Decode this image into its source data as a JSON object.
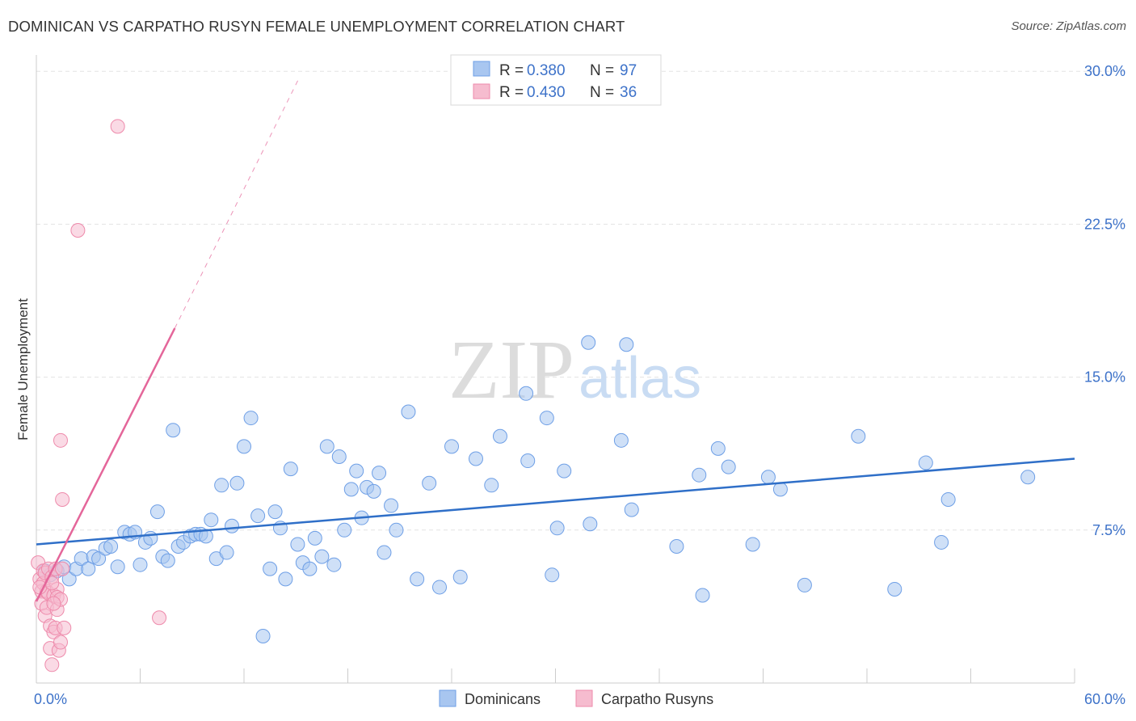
{
  "title": "DOMINICAN VS CARPATHO RUSYN FEMALE UNEMPLOYMENT CORRELATION CHART",
  "source": "Source: ZipAtlas.com",
  "watermark": {
    "zip": "ZIP",
    "atlas": "atlas"
  },
  "legend_stats": [
    {
      "r_label": "R =",
      "r_value": "0.380",
      "n_label": "N =",
      "n_value": "97",
      "color": "#6e9fe6"
    },
    {
      "r_label": "R =",
      "r_value": "0.430",
      "n_label": "N =",
      "n_value": "36",
      "color": "#f08cad"
    }
  ],
  "colors": {
    "blue_fill": "#a8c6f0",
    "blue_stroke": "#6e9fe6",
    "blue_line": "#2f6fc8",
    "pink_fill": "#f6bccf",
    "pink_stroke": "#ee8aab",
    "pink_line": "#e4669a",
    "tick_label": "#3d72c9",
    "grid": "#e3e3e3"
  },
  "chart_data": {
    "type": "scatter",
    "title": "DOMINICAN VS CARPATHO RUSYN FEMALE UNEMPLOYMENT CORRELATION CHART",
    "xlabel": "",
    "ylabel": "Female Unemployment",
    "xlim": [
      0,
      60
    ],
    "ylim": [
      0,
      31
    ],
    "x_tick_labels": [
      {
        "value": 0,
        "label": "0.0%"
      },
      {
        "value": 60,
        "label": "60.0%"
      }
    ],
    "y_tick_labels": [
      {
        "value": 7.5,
        "label": "7.5%"
      },
      {
        "value": 15.0,
        "label": "15.0%"
      },
      {
        "value": 22.5,
        "label": "22.5%"
      },
      {
        "value": 30.0,
        "label": "30.0%"
      }
    ],
    "legend": [
      "Dominicans",
      "Carpatho Rusyns"
    ],
    "series": [
      {
        "name": "Dominicans",
        "r": 0.38,
        "n": 97,
        "trend": {
          "x": [
            0,
            60
          ],
          "y": [
            6.8,
            11.0
          ]
        },
        "points": [
          [
            0.5,
            5.5
          ],
          [
            0.8,
            5.3
          ],
          [
            1.2,
            5.5
          ],
          [
            1.6,
            5.7
          ],
          [
            1.9,
            5.1
          ],
          [
            2.3,
            5.6
          ],
          [
            2.6,
            6.1
          ],
          [
            3.0,
            5.6
          ],
          [
            3.3,
            6.2
          ],
          [
            3.6,
            6.1
          ],
          [
            4.0,
            6.6
          ],
          [
            4.3,
            6.7
          ],
          [
            4.7,
            5.7
          ],
          [
            5.1,
            7.4
          ],
          [
            5.4,
            7.3
          ],
          [
            5.7,
            7.4
          ],
          [
            6.0,
            5.8
          ],
          [
            6.3,
            6.9
          ],
          [
            6.6,
            7.1
          ],
          [
            7.0,
            8.4
          ],
          [
            7.3,
            6.2
          ],
          [
            7.6,
            6.0
          ],
          [
            7.9,
            12.4
          ],
          [
            8.2,
            6.7
          ],
          [
            8.5,
            6.9
          ],
          [
            8.9,
            7.2
          ],
          [
            9.2,
            7.3
          ],
          [
            9.5,
            7.3
          ],
          [
            9.8,
            7.2
          ],
          [
            10.1,
            8.0
          ],
          [
            10.4,
            6.1
          ],
          [
            10.7,
            9.7
          ],
          [
            11.0,
            6.4
          ],
          [
            11.3,
            7.7
          ],
          [
            11.6,
            9.8
          ],
          [
            12.0,
            11.6
          ],
          [
            12.4,
            13.0
          ],
          [
            12.8,
            8.2
          ],
          [
            13.1,
            2.3
          ],
          [
            13.5,
            5.6
          ],
          [
            13.8,
            8.4
          ],
          [
            14.1,
            7.6
          ],
          [
            14.4,
            5.1
          ],
          [
            14.7,
            10.5
          ],
          [
            15.1,
            6.8
          ],
          [
            15.4,
            5.9
          ],
          [
            15.8,
            5.6
          ],
          [
            16.1,
            7.1
          ],
          [
            16.5,
            6.2
          ],
          [
            16.8,
            11.6
          ],
          [
            17.2,
            5.8
          ],
          [
            17.5,
            11.1
          ],
          [
            17.8,
            7.5
          ],
          [
            18.2,
            9.5
          ],
          [
            18.5,
            10.4
          ],
          [
            18.8,
            8.1
          ],
          [
            19.1,
            9.6
          ],
          [
            19.5,
            9.4
          ],
          [
            19.8,
            10.3
          ],
          [
            20.1,
            6.4
          ],
          [
            20.5,
            8.7
          ],
          [
            20.8,
            7.5
          ],
          [
            21.5,
            13.3
          ],
          [
            22.0,
            5.1
          ],
          [
            22.7,
            9.8
          ],
          [
            23.3,
            4.7
          ],
          [
            24.0,
            11.6
          ],
          [
            24.5,
            5.2
          ],
          [
            25.4,
            11.0
          ],
          [
            26.3,
            9.7
          ],
          [
            26.8,
            12.1
          ],
          [
            28.3,
            14.2
          ],
          [
            28.4,
            10.9
          ],
          [
            29.5,
            13.0
          ],
          [
            29.8,
            5.3
          ],
          [
            30.1,
            7.6
          ],
          [
            30.5,
            10.4
          ],
          [
            31.9,
            16.7
          ],
          [
            32.0,
            7.8
          ],
          [
            33.8,
            11.9
          ],
          [
            34.1,
            16.6
          ],
          [
            34.4,
            8.5
          ],
          [
            37.0,
            6.7
          ],
          [
            38.3,
            10.2
          ],
          [
            38.5,
            4.3
          ],
          [
            39.4,
            11.5
          ],
          [
            40.0,
            10.6
          ],
          [
            41.4,
            6.8
          ],
          [
            42.3,
            10.1
          ],
          [
            43.0,
            9.5
          ],
          [
            44.4,
            4.8
          ],
          [
            47.5,
            12.1
          ],
          [
            49.6,
            4.6
          ],
          [
            51.4,
            10.8
          ],
          [
            52.3,
            6.9
          ],
          [
            52.7,
            9.0
          ],
          [
            57.3,
            10.1
          ]
        ]
      },
      {
        "name": "Carpatho Rusyns",
        "r": 0.43,
        "n": 36,
        "trend": {
          "x": [
            0,
            8.0
          ],
          "y": [
            4.0,
            17.4
          ]
        },
        "trend_dashed": {
          "x": [
            8.0,
            15.2
          ],
          "y": [
            17.4,
            29.7
          ]
        },
        "points": [
          [
            0.1,
            5.9
          ],
          [
            0.2,
            5.1
          ],
          [
            0.3,
            4.5
          ],
          [
            0.3,
            3.9
          ],
          [
            0.4,
            5.5
          ],
          [
            0.4,
            4.9
          ],
          [
            0.5,
            3.3
          ],
          [
            0.5,
            5.4
          ],
          [
            0.6,
            4.5
          ],
          [
            0.6,
            3.7
          ],
          [
            0.7,
            5.6
          ],
          [
            0.7,
            4.4
          ],
          [
            0.8,
            2.8
          ],
          [
            0.8,
            1.7
          ],
          [
            0.9,
            0.9
          ],
          [
            0.9,
            5.2
          ],
          [
            1.0,
            4.3
          ],
          [
            1.0,
            2.5
          ],
          [
            1.1,
            2.7
          ],
          [
            1.1,
            5.6
          ],
          [
            1.2,
            4.6
          ],
          [
            1.2,
            4.2
          ],
          [
            1.2,
            3.6
          ],
          [
            1.3,
            1.6
          ],
          [
            1.4,
            2.0
          ],
          [
            1.4,
            4.1
          ],
          [
            1.4,
            11.9
          ],
          [
            1.5,
            5.6
          ],
          [
            1.5,
            9.0
          ],
          [
            1.6,
            2.7
          ],
          [
            0.2,
            4.7
          ],
          [
            0.9,
            4.9
          ],
          [
            4.7,
            27.3
          ],
          [
            2.4,
            22.2
          ],
          [
            7.1,
            3.2
          ],
          [
            1.0,
            3.9
          ]
        ]
      }
    ]
  }
}
